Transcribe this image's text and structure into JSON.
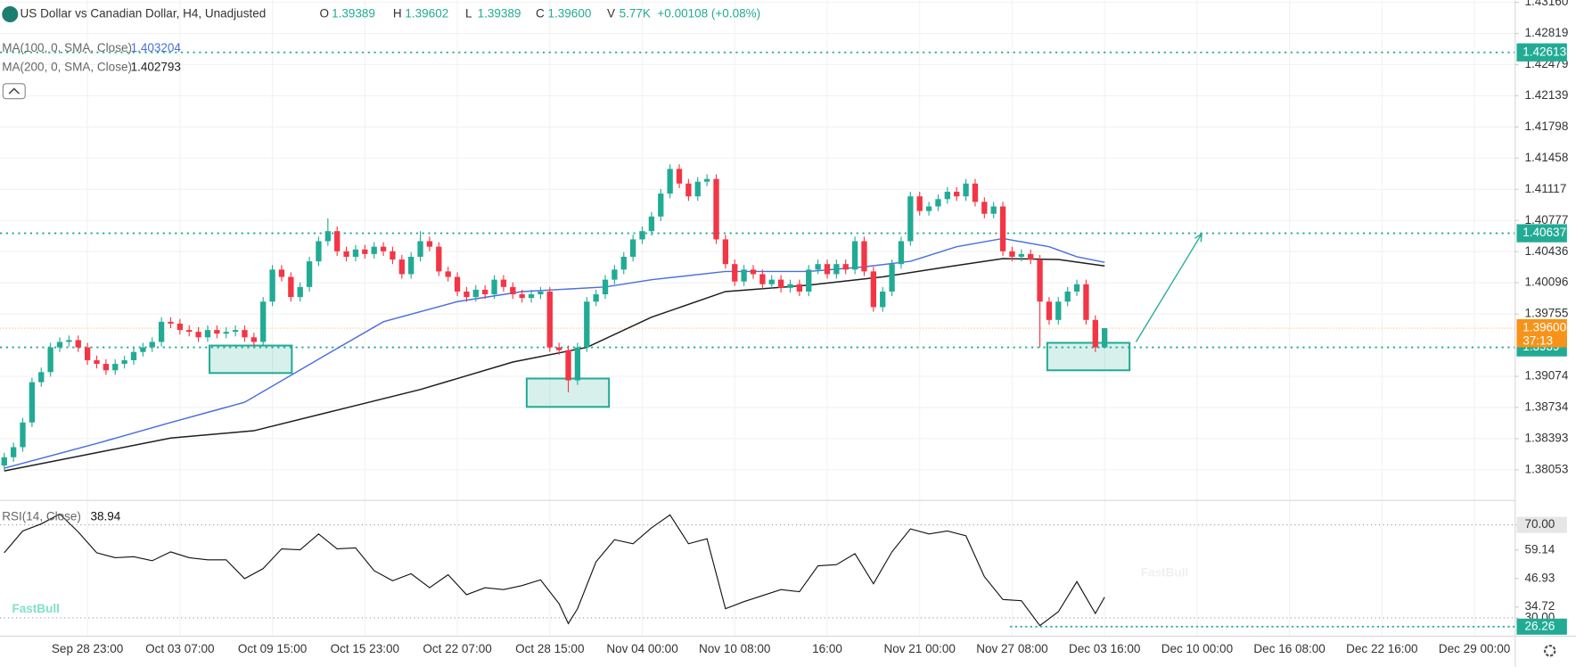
{
  "watermark": "FastBull",
  "chart_data": [
    {
      "type": "candlestick",
      "title": "US Dollar vs Canadian Dollar, H4, Unadjusted",
      "header": [
        {
          "name": "O",
          "value": "1.39389"
        },
        {
          "name": "H",
          "value": "1.39602"
        },
        {
          "name": "L",
          "value": "1.39389"
        },
        {
          "name": "C",
          "value": "1.39600"
        },
        {
          "name": "V",
          "value": "5.77K"
        }
      ],
      "change": "+0.00108 (+0.08%)",
      "open": [
        1.381,
        1.3819,
        1.383,
        1.3857,
        1.3901,
        1.3912,
        1.3939,
        1.3945,
        1.3947,
        1.3939,
        1.3925,
        1.3921,
        1.3914,
        1.3921,
        1.3925,
        1.3934,
        1.3939,
        1.3945,
        1.3967,
        1.3965,
        1.3958,
        1.3956,
        1.395,
        1.3958,
        1.3954,
        1.3956,
        1.3958,
        1.395,
        1.3945,
        1.3989,
        1.4024,
        1.4016,
        1.3994,
        1.4005,
        1.4033,
        1.4055,
        1.4066,
        1.4044,
        1.4038,
        1.4046,
        1.4041,
        1.4049,
        1.4044,
        1.4035,
        1.4019,
        1.4038,
        1.4055,
        1.4049,
        1.4022,
        1.4016,
        1.4,
        1.3994,
        1.4002,
        1.3997,
        1.4013,
        1.4005,
        1.3997,
        1.3993,
        1.3997,
        1.4,
        1.3939,
        1.3936,
        1.3903,
        1.3939,
        1.3989,
        1.3997,
        1.4013,
        1.4024,
        1.4038,
        1.4057,
        1.4066,
        1.4082,
        1.4107,
        1.4134,
        1.4118,
        1.4104,
        1.412,
        1.4123,
        1.4057,
        1.403,
        1.4011,
        1.4024,
        1.4019,
        1.4008,
        1.4013,
        1.4004,
        1.4008,
        1.4,
        1.4024,
        1.403,
        1.4019,
        1.403,
        1.4024,
        1.4055,
        1.4022,
        1.3983,
        1.4,
        1.403,
        1.4055,
        1.4104,
        1.4088,
        1.4093,
        1.4101,
        1.4109,
        1.4104,
        1.4118,
        1.4098,
        1.4085,
        1.4093,
        1.4044,
        1.4038,
        1.4041,
        1.4035,
        1.3989,
        1.3969,
        1.3989,
        1.4,
        1.4008,
        1.3969,
        1.39389
      ],
      "high": [
        1.3824,
        1.3835,
        1.3862,
        1.3906,
        1.3917,
        1.3944,
        1.395,
        1.3952,
        1.3952,
        1.3944,
        1.393,
        1.3926,
        1.3926,
        1.393,
        1.3939,
        1.3944,
        1.395,
        1.3972,
        1.3972,
        1.397,
        1.3963,
        1.3961,
        1.3963,
        1.3963,
        1.3961,
        1.3963,
        1.3963,
        1.3955,
        1.3994,
        1.4029,
        1.4029,
        1.4021,
        1.401,
        1.4038,
        1.406,
        1.408,
        1.4071,
        1.4049,
        1.4051,
        1.4051,
        1.4054,
        1.4054,
        1.4049,
        1.404,
        1.4043,
        1.4066,
        1.406,
        1.4054,
        1.4027,
        1.4021,
        1.4005,
        1.4007,
        1.4007,
        1.4018,
        1.4018,
        1.401,
        1.4002,
        1.4002,
        1.4005,
        1.4005,
        1.3944,
        1.3941,
        1.3944,
        1.3994,
        1.4002,
        1.4018,
        1.4029,
        1.4043,
        1.4062,
        1.4071,
        1.4087,
        1.4112,
        1.4139,
        1.4139,
        1.4123,
        1.4125,
        1.4128,
        1.4128,
        1.4062,
        1.4035,
        1.4029,
        1.4029,
        1.4024,
        1.4018,
        1.4018,
        1.4013,
        1.4013,
        1.4029,
        1.4035,
        1.4035,
        1.4035,
        1.4035,
        1.406,
        1.406,
        1.4027,
        1.4005,
        1.4035,
        1.406,
        1.4109,
        1.4109,
        1.4098,
        1.4106,
        1.4114,
        1.4114,
        1.4123,
        1.4123,
        1.4103,
        1.4098,
        1.4098,
        1.4049,
        1.4046,
        1.4046,
        1.404,
        1.3994,
        1.3994,
        1.4005,
        1.4013,
        1.4013,
        1.3974,
        1.39602
      ],
      "low": [
        1.3805,
        1.3814,
        1.3825,
        1.3852,
        1.3896,
        1.3907,
        1.3934,
        1.394,
        1.3934,
        1.392,
        1.3916,
        1.3909,
        1.3909,
        1.3916,
        1.392,
        1.3929,
        1.3934,
        1.394,
        1.396,
        1.3953,
        1.3951,
        1.3945,
        1.3945,
        1.3949,
        1.3949,
        1.3951,
        1.3945,
        1.394,
        1.394,
        1.3984,
        1.4011,
        1.3989,
        1.3989,
        1.4,
        1.4028,
        1.405,
        1.4039,
        1.4033,
        1.4033,
        1.4036,
        1.4036,
        1.4039,
        1.403,
        1.4014,
        1.4014,
        1.4033,
        1.4044,
        1.4017,
        1.4011,
        1.3995,
        1.3989,
        1.3989,
        1.3992,
        1.3992,
        1.4,
        1.3992,
        1.3988,
        1.3988,
        1.3992,
        1.3934,
        1.3931,
        1.389,
        1.3898,
        1.3934,
        1.3984,
        1.3992,
        1.4008,
        1.4019,
        1.4033,
        1.4052,
        1.4061,
        1.4077,
        1.4102,
        1.4113,
        1.4099,
        1.4099,
        1.4115,
        1.4052,
        1.4025,
        1.4006,
        1.4006,
        1.4014,
        1.4003,
        1.4003,
        1.3999,
        1.3999,
        1.3995,
        1.3995,
        1.4019,
        1.4014,
        1.4014,
        1.4019,
        1.4019,
        1.4017,
        1.3978,
        1.3978,
        1.3995,
        1.4025,
        1.405,
        1.4083,
        1.4083,
        1.4088,
        1.4096,
        1.4099,
        1.4099,
        1.4093,
        1.408,
        1.408,
        1.4039,
        1.4033,
        1.4033,
        1.403,
        1.3939,
        1.3964,
        1.3964,
        1.3984,
        1.3995,
        1.3964,
        1.3934,
        1.39389
      ],
      "close": [
        1.3819,
        1.383,
        1.3857,
        1.3901,
        1.3912,
        1.3939,
        1.3945,
        1.3947,
        1.3939,
        1.3925,
        1.3921,
        1.3914,
        1.3921,
        1.3925,
        1.3934,
        1.3939,
        1.3945,
        1.3967,
        1.3965,
        1.3958,
        1.3956,
        1.395,
        1.3958,
        1.3954,
        1.3956,
        1.3958,
        1.395,
        1.3945,
        1.3989,
        1.4024,
        1.4016,
        1.3994,
        1.4005,
        1.4033,
        1.4055,
        1.4066,
        1.4044,
        1.4038,
        1.4046,
        1.4041,
        1.4049,
        1.4044,
        1.4035,
        1.4019,
        1.4038,
        1.4055,
        1.4049,
        1.4022,
        1.4016,
        1.4,
        1.3994,
        1.4002,
        1.3997,
        1.4013,
        1.4005,
        1.3997,
        1.3993,
        1.3997,
        1.4,
        1.3939,
        1.3936,
        1.3903,
        1.3939,
        1.3989,
        1.3997,
        1.4013,
        1.4024,
        1.4038,
        1.4057,
        1.4066,
        1.4082,
        1.4107,
        1.4134,
        1.4118,
        1.4104,
        1.412,
        1.4123,
        1.4057,
        1.403,
        1.4011,
        1.4024,
        1.4019,
        1.4008,
        1.4013,
        1.4004,
        1.4008,
        1.4,
        1.4024,
        1.403,
        1.4019,
        1.403,
        1.4024,
        1.4055,
        1.4022,
        1.3983,
        1.4,
        1.403,
        1.4055,
        1.4104,
        1.4088,
        1.4093,
        1.4101,
        1.4109,
        1.4104,
        1.4118,
        1.4098,
        1.4085,
        1.4093,
        1.4044,
        1.4038,
        1.4041,
        1.4035,
        1.3989,
        1.3969,
        1.3989,
        1.4,
        1.4008,
        1.3969,
        1.3939,
        1.396
      ],
      "up_color": "#22ab94",
      "down_color": "#f23645",
      "xlim": [
        -0.46,
        163.35
      ],
      "xticks": [
        {
          "value": 9,
          "label": "Sep 28 23:00"
        },
        {
          "value": 19,
          "label": "Oct 03 07:00"
        },
        {
          "value": 29,
          "label": "Oct 09 15:00"
        },
        {
          "value": 39,
          "label": "Oct 15 23:00"
        },
        {
          "value": 49,
          "label": "Oct 22 07:00"
        },
        {
          "value": 59,
          "label": "Oct 28 15:00"
        },
        {
          "value": 69,
          "label": "Nov 04 00:00"
        },
        {
          "value": 79,
          "label": "Nov 10 08:00"
        },
        {
          "value": 89,
          "label": "16:00"
        },
        {
          "value": 99,
          "label": "Nov 21 00:00"
        },
        {
          "value": 109,
          "label": "Nov 27 08:00"
        },
        {
          "value": 119,
          "label": "Dec 03 16:00"
        },
        {
          "value": 129,
          "label": "Dec 10 00:00"
        },
        {
          "value": 139,
          "label": "Dec 16 08:00"
        },
        {
          "value": 149,
          "label": "Dec 22 16:00"
        },
        {
          "value": 159,
          "label": "Dec 29 00:00"
        }
      ],
      "ylim": [
        1.37724,
        1.43183
      ],
      "yticks": [
        {
          "value": 1.4316,
          "label": "1.43160"
        },
        1.42819,
        1.42479,
        1.42139,
        1.41798,
        1.41458,
        1.41117,
        1.40777,
        1.40436,
        1.40096,
        1.39755,
        1.39074,
        1.38734,
        1.38393,
        1.38053
      ],
      "grid": true,
      "series": [
        {
          "name": "MA(100, 0, SMA, Close)",
          "last": 1.403204,
          "color": "#4a6ee0",
          "x": [
            0,
            10,
            18,
            26,
            35,
            41,
            49,
            56,
            65,
            70,
            78,
            87,
            93,
            98,
            103,
            108,
            113,
            116,
            119
          ],
          "values": [
            1.3807,
            1.3834,
            1.3857,
            1.3879,
            1.3932,
            1.3967,
            1.3989,
            1.4,
            1.4005,
            1.4013,
            1.4022,
            1.4022,
            1.4027,
            1.4033,
            1.4049,
            1.4058,
            1.4049,
            1.4038,
            1.4032
          ]
        },
        {
          "name": "MA(200, 0, SMA, Close)",
          "last": 1.402793,
          "color": "#1e1e1e",
          "x": [
            0,
            10,
            18,
            27,
            35,
            45,
            55,
            63,
            70,
            78,
            87,
            95,
            102,
            108,
            114,
            119
          ],
          "values": [
            1.3804,
            1.3824,
            1.384,
            1.3848,
            1.3868,
            1.3893,
            1.3923,
            1.3939,
            1.3972,
            1.4,
            1.4007,
            1.4016,
            1.4027,
            1.4036,
            1.4035,
            1.4028
          ]
        }
      ],
      "levels": [
        1.42613,
        1.40637,
        1.3939
      ],
      "level_color": "#22ab94",
      "last_price": {
        "value": 1.396,
        "label": "1.39600"
      },
      "countdown": "37:13",
      "last_color": "#f7931a",
      "zones": [
        {
          "x": [
            22.2,
            31.1
          ],
          "y": [
            1.3911,
            1.3941
          ]
        },
        {
          "x": [
            56.5,
            65.4
          ],
          "y": [
            1.3874,
            1.3905
          ]
        },
        {
          "x": [
            112.8,
            121.7
          ],
          "y": [
            1.3914,
            1.3944
          ]
        }
      ],
      "arrow": {
        "x": [
          122.4,
          129.5
        ],
        "y": [
          1.3945,
          1.4063
        ]
      }
    },
    {
      "type": "line",
      "title": "RSI(14, Close)",
      "last": 38.94,
      "color": "#111111",
      "x": [
        0,
        2,
        4,
        6,
        8,
        10,
        12,
        14,
        16,
        18,
        20,
        22,
        24,
        26,
        28,
        30,
        32,
        34,
        36,
        38,
        40,
        42,
        44,
        46,
        48,
        50,
        52,
        54,
        56,
        58,
        60,
        61,
        62,
        64,
        66,
        68,
        70,
        72,
        74,
        76,
        78,
        80,
        82,
        84,
        86,
        88,
        90,
        92,
        94,
        96,
        98,
        100,
        102,
        104,
        106,
        108,
        110,
        112,
        114,
        116,
        118,
        119
      ],
      "values": [
        58.0,
        67.4,
        70.4,
        74.7,
        67.0,
        58.0,
        55.9,
        56.3,
        54.6,
        58.4,
        55.9,
        55.0,
        55.0,
        46.9,
        51.2,
        59.7,
        59.3,
        66.1,
        59.7,
        60.1,
        50.3,
        46.0,
        49.0,
        43.0,
        48.6,
        40.0,
        43.0,
        42.2,
        43.9,
        46.4,
        36.2,
        27.6,
        34.0,
        54.1,
        63.6,
        61.9,
        68.7,
        74.3,
        61.9,
        64.0,
        34.0,
        37.0,
        39.6,
        42.2,
        41.3,
        52.4,
        52.9,
        57.6,
        44.7,
        58.4,
        68.3,
        66.1,
        67.4,
        65.3,
        47.7,
        37.9,
        37.4,
        26.7,
        32.7,
        45.6,
        31.9,
        38.94
      ],
      "ylim": [
        22.4,
        80.3
      ],
      "yticks": [
        {
          "value": 70,
          "label": "70.00"
        },
        59.14,
        46.93,
        34.72,
        {
          "value": 30,
          "label": "30.00"
        }
      ],
      "levels": [
        70,
        30
      ],
      "marker": 26.26,
      "marker_color": "#22ab94"
    }
  ]
}
